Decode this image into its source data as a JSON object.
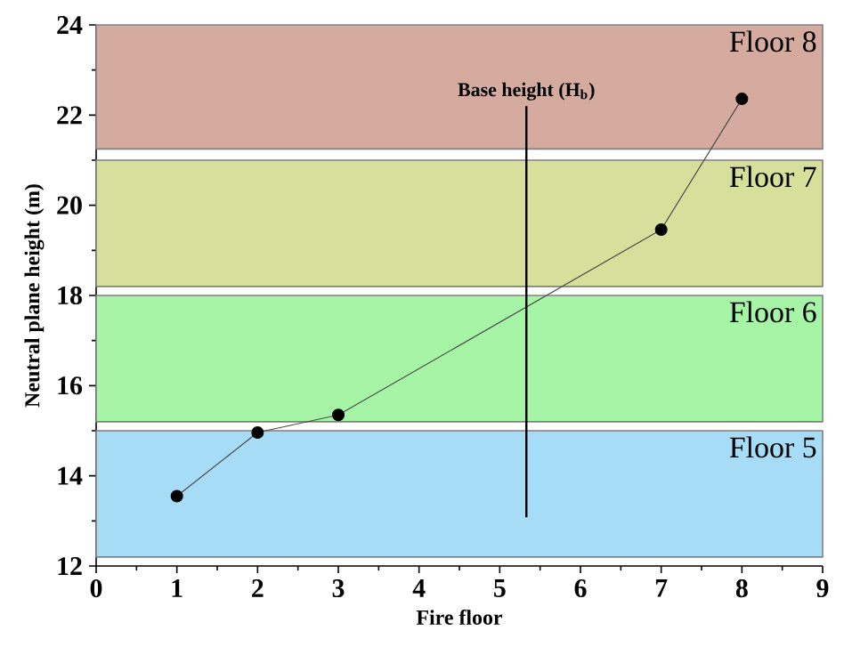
{
  "chart_data": {
    "type": "line",
    "xlabel": "Fire floor",
    "ylabel": "Neutral plane height (m)",
    "x": [
      1,
      2,
      3,
      7,
      8
    ],
    "series": [
      {
        "color": "#000000",
        "values": [
          13.55,
          14.96,
          15.35,
          19.46,
          22.36
        ]
      }
    ],
    "marker": "circle",
    "line_style": "solid",
    "xlim": [
      0,
      9
    ],
    "xticks": [
      0,
      1,
      2,
      3,
      4,
      5,
      6,
      7,
      8,
      9
    ],
    "ylim": [
      12,
      24
    ],
    "yticks": [
      12,
      14,
      16,
      18,
      20,
      22,
      24
    ],
    "grid": false,
    "bands": [
      {
        "axis": "y",
        "from": 21.25,
        "to": 24,
        "label": "Floor 8",
        "color": "#d4ab9e"
      },
      {
        "axis": "y",
        "from": 18.2,
        "to": 21.0,
        "label": "Floor 7",
        "color": "#d6e09b"
      },
      {
        "axis": "y",
        "from": 15.2,
        "to": 18.0,
        "label": "Floor 6",
        "color": "#a6f5a6"
      },
      {
        "axis": "y",
        "from": 12.2,
        "to": 15.0,
        "label": "Floor 5",
        "color": "#a6dcf5"
      }
    ],
    "ref_lines": [
      {
        "axis": "x",
        "value": 5.33,
        "label": "Base height (H$_{b}$)",
        "color": "#000000"
      }
    ]
  }
}
